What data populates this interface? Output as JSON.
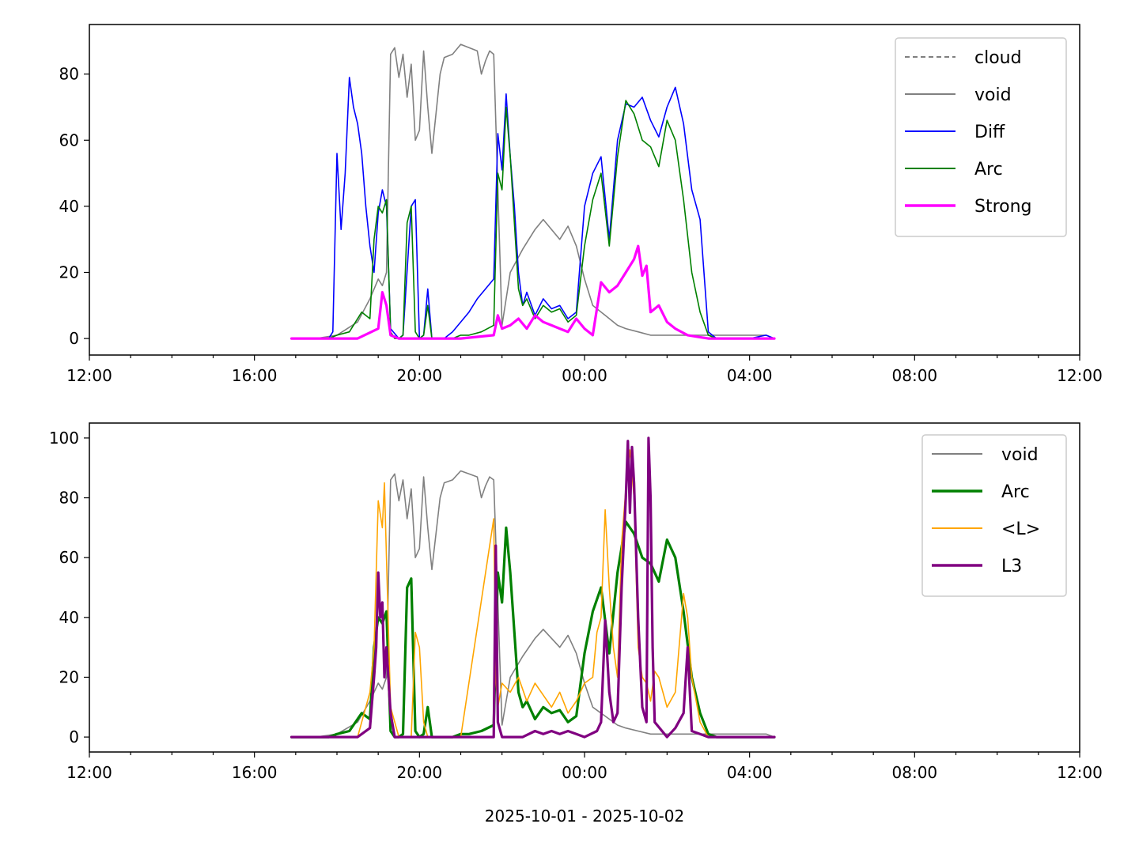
{
  "figure": {
    "xlabel": "2025-10-01 - 2025-10-02"
  },
  "chart_data": [
    {
      "type": "line",
      "x_range_hours": [
        12,
        36
      ],
      "xticks": [
        "12:00",
        "16:00",
        "20:00",
        "00:00",
        "04:00",
        "08:00",
        "12:00"
      ],
      "ylim": [
        -5,
        95
      ],
      "yticks": [
        0,
        20,
        40,
        60,
        80
      ],
      "legend_position": "top-right",
      "grid": false,
      "series": [
        {
          "name": "cloud",
          "color": "#808080",
          "style": "dashed",
          "x": [],
          "y": []
        },
        {
          "name": "void",
          "color": "#808080",
          "style": "solid",
          "x": [
            16.9,
            17.5,
            18.0,
            18.5,
            18.8,
            19.0,
            19.1,
            19.2,
            19.3,
            19.4,
            19.5,
            19.6,
            19.7,
            19.8,
            19.9,
            20.0,
            20.1,
            20.2,
            20.3,
            20.5,
            20.6,
            20.8,
            21.0,
            21.2,
            21.4,
            21.5,
            21.6,
            21.7,
            21.8,
            22.0,
            22.2,
            22.5,
            22.8,
            23.0,
            23.2,
            23.4,
            23.6,
            23.8,
            24.0,
            24.2,
            24.5,
            24.8,
            25.0,
            25.3,
            25.6,
            25.9,
            26.2,
            26.5,
            26.8,
            27.0,
            27.5,
            28.0,
            28.4,
            28.6
          ],
          "y": [
            0,
            0,
            1,
            5,
            12,
            18,
            16,
            20,
            86,
            88,
            79,
            86,
            73,
            83,
            60,
            63,
            87,
            70,
            56,
            80,
            85,
            86,
            89,
            88,
            87,
            80,
            84,
            87,
            86,
            4,
            20,
            27,
            33,
            36,
            33,
            30,
            34,
            28,
            18,
            10,
            7,
            4,
            3,
            2,
            1,
            1,
            1,
            1,
            1,
            1,
            1,
            1,
            1,
            0
          ]
        },
        {
          "name": "Diff",
          "color": "#0000ff",
          "style": "solid",
          "x": [
            16.9,
            17.8,
            17.9,
            18.0,
            18.1,
            18.2,
            18.3,
            18.4,
            18.5,
            18.6,
            18.7,
            18.8,
            18.9,
            19.0,
            19.1,
            19.2,
            19.3,
            19.5,
            19.6,
            19.8,
            19.9,
            20.0,
            20.1,
            20.2,
            20.3,
            20.5,
            20.6,
            20.7,
            20.8,
            21.0,
            21.2,
            21.4,
            21.6,
            21.8,
            21.9,
            22.0,
            22.1,
            22.2,
            22.3,
            22.4,
            22.5,
            22.6,
            22.8,
            23.0,
            23.2,
            23.4,
            23.6,
            23.8,
            24.0,
            24.2,
            24.4,
            24.6,
            24.8,
            25.0,
            25.2,
            25.4,
            25.6,
            25.8,
            26.0,
            26.2,
            26.4,
            26.6,
            26.8,
            27.0,
            27.2,
            27.5,
            28.0,
            28.4,
            28.6
          ],
          "y": [
            0,
            0,
            2,
            56,
            33,
            50,
            79,
            70,
            65,
            56,
            40,
            28,
            20,
            38,
            45,
            40,
            3,
            0,
            1,
            40,
            42,
            0,
            1,
            15,
            0,
            0,
            0,
            1,
            2,
            5,
            8,
            12,
            15,
            18,
            62,
            51,
            74,
            55,
            40,
            20,
            10,
            14,
            7,
            12,
            9,
            10,
            6,
            8,
            40,
            50,
            55,
            30,
            60,
            71,
            70,
            73,
            66,
            61,
            70,
            76,
            65,
            45,
            36,
            2,
            0,
            0,
            0,
            1,
            0
          ]
        },
        {
          "name": "Arc",
          "color": "#008000",
          "style": "solid",
          "x": [
            16.9,
            17.8,
            18.0,
            18.3,
            18.6,
            18.8,
            18.9,
            19.0,
            19.1,
            19.2,
            19.3,
            19.4,
            19.5,
            19.6,
            19.7,
            19.8,
            19.9,
            20.0,
            20.1,
            20.2,
            20.3,
            20.5,
            20.6,
            20.8,
            21.0,
            21.2,
            21.5,
            21.8,
            21.9,
            22.0,
            22.1,
            22.2,
            22.3,
            22.4,
            22.5,
            22.6,
            22.8,
            23.0,
            23.2,
            23.4,
            23.6,
            23.8,
            24.0,
            24.2,
            24.4,
            24.6,
            24.8,
            25.0,
            25.2,
            25.4,
            25.6,
            25.8,
            26.0,
            26.2,
            26.4,
            26.6,
            26.8,
            27.0,
            27.2,
            27.5,
            28.0,
            28.4,
            28.6
          ],
          "y": [
            0,
            0,
            1,
            2,
            8,
            6,
            30,
            40,
            38,
            42,
            2,
            0,
            0,
            1,
            35,
            40,
            2,
            0,
            1,
            10,
            0,
            0,
            0,
            0,
            1,
            1,
            2,
            4,
            50,
            45,
            70,
            55,
            35,
            15,
            10,
            12,
            6,
            10,
            8,
            9,
            5,
            7,
            28,
            42,
            50,
            28,
            55,
            72,
            68,
            60,
            58,
            52,
            66,
            60,
            42,
            20,
            8,
            1,
            0,
            0,
            0,
            0,
            0
          ]
        },
        {
          "name": "Strong",
          "color": "#ff00ff",
          "style": "thick",
          "x": [
            16.9,
            18.5,
            19.0,
            19.1,
            19.2,
            19.3,
            19.5,
            20.0,
            21.0,
            21.8,
            21.9,
            22.0,
            22.2,
            22.4,
            22.6,
            22.8,
            23.0,
            23.2,
            23.4,
            23.6,
            23.8,
            24.0,
            24.2,
            24.4,
            24.6,
            24.8,
            25.0,
            25.2,
            25.3,
            25.4,
            25.5,
            25.6,
            25.8,
            26.0,
            26.2,
            26.5,
            27.0,
            28.0,
            28.6
          ],
          "y": [
            0,
            0,
            3,
            14,
            10,
            1,
            0,
            0,
            0,
            1,
            7,
            3,
            4,
            6,
            3,
            7,
            5,
            4,
            3,
            2,
            6,
            3,
            1,
            17,
            14,
            16,
            20,
            24,
            28,
            19,
            22,
            8,
            10,
            5,
            3,
            1,
            0,
            0,
            0
          ]
        }
      ]
    },
    {
      "type": "line",
      "x_range_hours": [
        12,
        36
      ],
      "xticks": [
        "12:00",
        "16:00",
        "20:00",
        "00:00",
        "04:00",
        "08:00",
        "12:00"
      ],
      "ylim": [
        -5,
        105
      ],
      "yticks": [
        0,
        20,
        40,
        60,
        80,
        100
      ],
      "legend_position": "top-right",
      "grid": false,
      "series": [
        {
          "name": "void",
          "color": "#808080",
          "style": "solid",
          "x": [
            16.9,
            17.5,
            18.0,
            18.5,
            18.8,
            19.0,
            19.1,
            19.2,
            19.3,
            19.4,
            19.5,
            19.6,
            19.7,
            19.8,
            19.9,
            20.0,
            20.1,
            20.2,
            20.3,
            20.5,
            20.6,
            20.8,
            21.0,
            21.2,
            21.4,
            21.5,
            21.6,
            21.7,
            21.8,
            22.0,
            22.2,
            22.5,
            22.8,
            23.0,
            23.2,
            23.4,
            23.6,
            23.8,
            24.0,
            24.2,
            24.5,
            24.8,
            25.0,
            25.3,
            25.6,
            25.9,
            26.2,
            26.5,
            26.8,
            27.0,
            27.5,
            28.0,
            28.4,
            28.6
          ],
          "y": [
            0,
            0,
            1,
            5,
            12,
            18,
            16,
            20,
            86,
            88,
            79,
            86,
            73,
            83,
            60,
            63,
            87,
            70,
            56,
            80,
            85,
            86,
            89,
            88,
            87,
            80,
            84,
            87,
            86,
            4,
            20,
            27,
            33,
            36,
            33,
            30,
            34,
            28,
            18,
            10,
            7,
            4,
            3,
            2,
            1,
            1,
            1,
            1,
            1,
            1,
            1,
            1,
            1,
            0
          ]
        },
        {
          "name": "Arc",
          "color": "#008000",
          "style": "thick",
          "x": [
            16.9,
            17.8,
            18.0,
            18.3,
            18.6,
            18.8,
            18.9,
            19.0,
            19.1,
            19.2,
            19.3,
            19.4,
            19.5,
            19.6,
            19.7,
            19.8,
            19.9,
            20.0,
            20.1,
            20.2,
            20.3,
            20.5,
            20.6,
            20.8,
            21.0,
            21.2,
            21.5,
            21.8,
            21.9,
            22.0,
            22.1,
            22.2,
            22.3,
            22.4,
            22.5,
            22.6,
            22.8,
            23.0,
            23.2,
            23.4,
            23.6,
            23.8,
            24.0,
            24.2,
            24.4,
            24.6,
            24.8,
            25.0,
            25.2,
            25.4,
            25.6,
            25.8,
            26.0,
            26.2,
            26.4,
            26.6,
            26.8,
            27.0,
            27.2,
            27.5,
            28.0,
            28.4,
            28.6
          ],
          "y": [
            0,
            0,
            1,
            2,
            8,
            6,
            30,
            40,
            38,
            42,
            2,
            0,
            0,
            1,
            50,
            53,
            2,
            0,
            1,
            10,
            0,
            0,
            0,
            0,
            1,
            1,
            2,
            4,
            55,
            45,
            70,
            55,
            35,
            15,
            10,
            12,
            6,
            10,
            8,
            9,
            5,
            7,
            28,
            42,
            50,
            28,
            55,
            72,
            68,
            60,
            58,
            52,
            66,
            60,
            42,
            20,
            8,
            1,
            0,
            0,
            0,
            0,
            0
          ]
        },
        {
          "name": "<L>",
          "color": "#ffa500",
          "style": "solid",
          "x": [
            16.9,
            18.5,
            18.8,
            18.9,
            19.0,
            19.1,
            19.15,
            19.2,
            19.3,
            19.5,
            19.8,
            19.9,
            20.0,
            20.1,
            20.2,
            20.4,
            20.6,
            21.0,
            21.8,
            21.85,
            21.9,
            22.0,
            22.2,
            22.4,
            22.6,
            22.8,
            23.0,
            23.2,
            23.4,
            23.6,
            23.8,
            24.0,
            24.2,
            24.3,
            24.4,
            24.5,
            24.6,
            24.7,
            24.8,
            24.9,
            25.0,
            25.1,
            25.2,
            25.3,
            25.4,
            25.5,
            25.6,
            25.7,
            25.8,
            26.0,
            26.2,
            26.4,
            26.5,
            26.6,
            26.8,
            27.0,
            28.0,
            28.6
          ],
          "y": [
            0,
            0,
            15,
            30,
            79,
            70,
            85,
            60,
            10,
            0,
            0,
            35,
            30,
            5,
            0,
            0,
            0,
            0,
            73,
            20,
            10,
            18,
            15,
            20,
            12,
            18,
            14,
            10,
            15,
            8,
            12,
            18,
            20,
            35,
            40,
            76,
            50,
            30,
            20,
            65,
            83,
            96,
            80,
            30,
            20,
            18,
            12,
            22,
            20,
            10,
            15,
            48,
            40,
            20,
            5,
            0,
            0,
            0
          ]
        },
        {
          "name": "L3",
          "color": "#800080",
          "style": "thick",
          "x": [
            16.9,
            18.5,
            18.8,
            18.9,
            18.95,
            19.0,
            19.05,
            19.1,
            19.15,
            19.2,
            19.3,
            19.4,
            19.5,
            21.0,
            21.8,
            21.85,
            21.9,
            22.0,
            22.5,
            22.8,
            23.0,
            23.2,
            23.4,
            23.6,
            23.8,
            24.0,
            24.3,
            24.4,
            24.5,
            24.6,
            24.7,
            24.8,
            24.9,
            25.0,
            25.05,
            25.1,
            25.15,
            25.2,
            25.3,
            25.4,
            25.5,
            25.55,
            25.6,
            25.65,
            25.7,
            26.0,
            26.2,
            26.4,
            26.5,
            26.6,
            27.0,
            28.0,
            28.6
          ],
          "y": [
            0,
            0,
            3,
            20,
            30,
            55,
            40,
            45,
            20,
            30,
            8,
            0,
            0,
            0,
            0,
            64,
            5,
            0,
            0,
            2,
            1,
            2,
            1,
            2,
            1,
            0,
            2,
            5,
            39,
            15,
            5,
            8,
            50,
            80,
            99,
            75,
            97,
            85,
            40,
            10,
            5,
            100,
            80,
            30,
            5,
            0,
            3,
            8,
            30,
            2,
            0,
            0,
            0
          ]
        }
      ]
    }
  ]
}
